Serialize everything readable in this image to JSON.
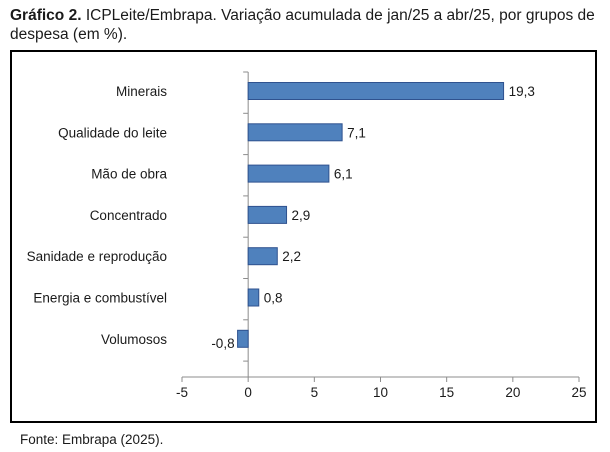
{
  "figure": {
    "label": "Gráfico 2.",
    "caption": "ICPLeite/Embrapa. Variação acumulada de jan/25 a abr/25, por grupos de despesa (em %).",
    "source": "Fonte: Embrapa (2025)."
  },
  "chart_data": {
    "type": "bar",
    "orientation": "horizontal",
    "categories": [
      "Minerais",
      "Qualidade do leite",
      "Mão de obra",
      "Concentrado",
      "Sanidade e reprodução",
      "Energia e combustível",
      "Volumosos"
    ],
    "values": [
      19.3,
      7.1,
      6.1,
      2.9,
      2.2,
      0.8,
      -0.8
    ],
    "value_labels": [
      "19,3",
      "7,1",
      "6,1",
      "2,9",
      "2,2",
      "0,8",
      "-0,8"
    ],
    "xlim": [
      -5,
      25
    ],
    "xticks": [
      -5,
      0,
      5,
      10,
      15,
      20,
      25
    ],
    "xtick_labels": [
      "-5",
      "0",
      "5",
      "10",
      "15",
      "20",
      "25"
    ],
    "bar_color": "#4f81bd",
    "bar_edge_color": "#2f528f",
    "grid": false,
    "legend": "none"
  }
}
